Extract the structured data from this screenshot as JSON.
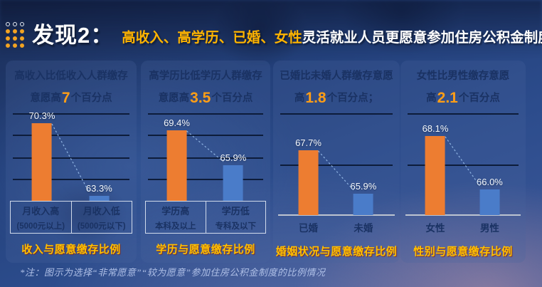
{
  "header": {
    "title": "发现2：",
    "subtitle_highlight": "高收入、高学历、已婚、女性",
    "subtitle_rest": "灵活就业人员更愿意参加住房公积金制度"
  },
  "footnote": "*注：图示为选择“非常愿意”“较为愿意”参加住房公积金制度的比例情况",
  "colors": {
    "bar_orange": "#ED7D31",
    "bar_blue": "#4A7CC9",
    "highlight_gold": "#FFB400",
    "caption_gold": "#FFC000",
    "heading_navy": "#1a3263",
    "trend_line": "#8FB4E3"
  },
  "chart_data": {
    "type": "bar",
    "unit": "%",
    "legend_position": "none",
    "grid": true,
    "panels": [
      {
        "id": "income",
        "heading_line1": "高收入比低收入人群缴存",
        "heading_line2_pre": "意愿高",
        "heading_number": "7",
        "heading_line2_post": "个百分点",
        "categories": [
          "月收入高 (5000元以上)",
          "月收入低 (5000元以下)"
        ],
        "cat_lines": [
          [
            "月收入高",
            "(5000元以上)"
          ],
          [
            "月收入低",
            "(5000元以下)"
          ]
        ],
        "values": [
          70.3,
          63.3
        ],
        "value_labels": [
          "70.3%",
          "63.3%"
        ],
        "ylim": [
          62.8,
          71.3
        ],
        "caption": "收入与愿意缴存比例"
      },
      {
        "id": "education",
        "heading_line1": "高学历比低学历人群缴存",
        "heading_line2_pre": "意愿高",
        "heading_number": "3.5",
        "heading_line2_post": "个百分点",
        "categories": [
          "学历高 本科及以上",
          "学历低 专科及以下"
        ],
        "cat_lines": [
          [
            "学历高",
            "本科及以上"
          ],
          [
            "学历低",
            "专科及以下"
          ]
        ],
        "values": [
          69.4,
          65.9
        ],
        "value_labels": [
          "69.4%",
          "65.9%"
        ],
        "ylim": [
          62.3,
          71.1
        ],
        "caption": "学历与愿意缴存比例"
      },
      {
        "id": "marriage",
        "heading_line1": "已婚比未婚人群缴存意愿",
        "heading_line2_pre": "高",
        "heading_number": "1.8",
        "heading_line2_post": "个百分点；",
        "categories": [
          "已婚",
          "未婚"
        ],
        "values": [
          67.7,
          65.9
        ],
        "value_labels": [
          "67.7%",
          "65.9%"
        ],
        "ylim": [
          65.0,
          69.25
        ],
        "caption": "婚姻状况与愿意缴存比例"
      },
      {
        "id": "gender",
        "heading_line1": "女性比男性缴存意愿",
        "heading_line2_pre": "高",
        "heading_number": "2.1",
        "heading_line2_post": "个百分点",
        "categories": [
          "女性",
          "男性"
        ],
        "values": [
          68.1,
          66.0
        ],
        "value_labels": [
          "68.1%",
          "66.0%"
        ],
        "ylim": [
          65.0,
          69.0
        ],
        "caption": "性别与愿意缴存比例"
      }
    ]
  }
}
